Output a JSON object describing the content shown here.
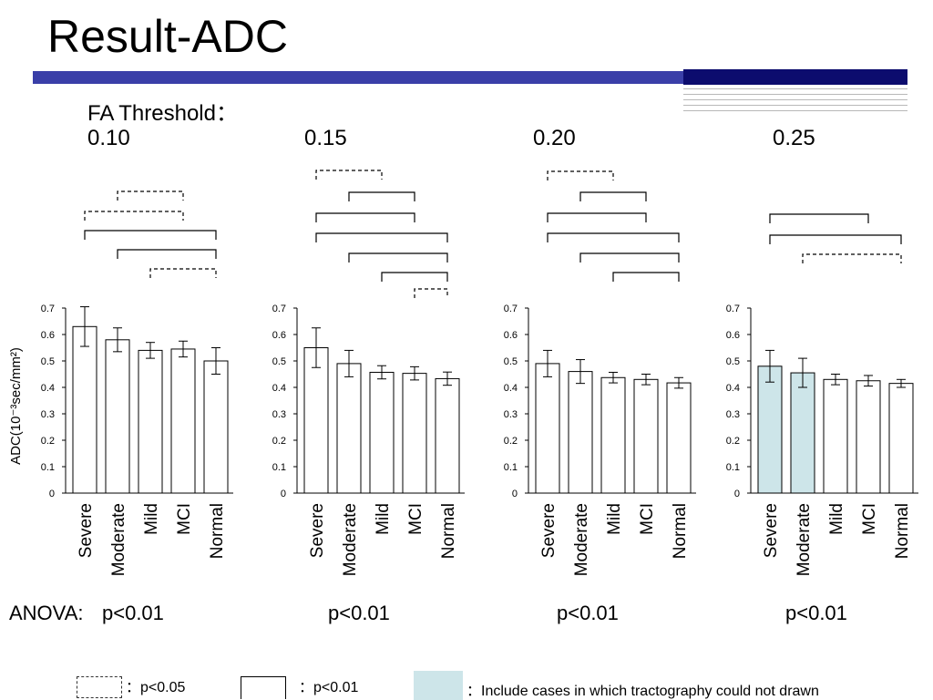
{
  "title": "Result-ADC",
  "fa_label": "FA Threshold：",
  "anova_label": "ANOVA:",
  "legend": {
    "dashed": "：p<0.05",
    "solid": "：p<0.01",
    "shaded": "：Include cases in which tractography could not drawn"
  },
  "colors": {
    "shaded": "#cde5e9",
    "band": "#3a3fa8",
    "band_dark": "#0c0c6e"
  },
  "chart_data": [
    {
      "type": "bar",
      "threshold": "0.10",
      "p_value": "p<0.01",
      "categories": [
        "Severe",
        "Moderate",
        "Mild",
        "MCI",
        "Normal"
      ],
      "values": [
        0.63,
        0.58,
        0.54,
        0.545,
        0.5
      ],
      "errors": [
        0.075,
        0.045,
        0.03,
        0.03,
        0.05
      ],
      "highlighted": [
        false,
        false,
        false,
        false,
        false
      ],
      "ylabel": "ADC(10⁻³sec/mm²)",
      "ylim": [
        0,
        0.7
      ],
      "yticks": [
        "0",
        "0.1",
        "0.2",
        "0.3",
        "0.4",
        "0.5",
        "0.6",
        "0.7"
      ],
      "comparisons": [
        {
          "from": 1,
          "to": 3,
          "sig": "p<0.05"
        },
        {
          "from": 0,
          "to": 3,
          "sig": "p<0.05"
        },
        {
          "from": 0,
          "to": 4,
          "sig": "p<0.01"
        },
        {
          "from": 1,
          "to": 4,
          "sig": "p<0.01"
        },
        {
          "from": 2,
          "to": 4,
          "sig": "p<0.05"
        }
      ]
    },
    {
      "type": "bar",
      "threshold": "0.15",
      "p_value": "p<0.01",
      "categories": [
        "Severe",
        "Moderate",
        "Mild",
        "MCI",
        "Normal"
      ],
      "values": [
        0.55,
        0.49,
        0.457,
        0.453,
        0.433
      ],
      "errors": [
        0.075,
        0.05,
        0.025,
        0.025,
        0.025
      ],
      "highlighted": [
        false,
        false,
        false,
        false,
        false
      ],
      "ylim": [
        0,
        0.7
      ],
      "yticks": [
        "0",
        "0.1",
        "0.2",
        "0.3",
        "0.4",
        "0.5",
        "0.6",
        "0.7"
      ],
      "comparisons": [
        {
          "from": 0,
          "to": 2,
          "sig": "p<0.05"
        },
        {
          "from": 1,
          "to": 3,
          "sig": "p<0.01"
        },
        {
          "from": 0,
          "to": 3,
          "sig": "p<0.01"
        },
        {
          "from": 0,
          "to": 4,
          "sig": "p<0.01"
        },
        {
          "from": 1,
          "to": 4,
          "sig": "p<0.01"
        },
        {
          "from": 2,
          "to": 4,
          "sig": "p<0.01"
        },
        {
          "from": 3,
          "to": 4,
          "sig": "p<0.05"
        }
      ]
    },
    {
      "type": "bar",
      "threshold": "0.20",
      "p_value": "p<0.01",
      "categories": [
        "Severe",
        "Moderate",
        "Mild",
        "MCI",
        "Normal"
      ],
      "values": [
        0.49,
        0.46,
        0.437,
        0.43,
        0.417
      ],
      "errors": [
        0.05,
        0.045,
        0.02,
        0.02,
        0.02
      ],
      "highlighted": [
        false,
        false,
        false,
        false,
        false
      ],
      "ylim": [
        0,
        0.7
      ],
      "yticks": [
        "0",
        "0.1",
        "0.2",
        "0.3",
        "0.4",
        "0.5",
        "0.6",
        "0.7"
      ],
      "comparisons": [
        {
          "from": 0,
          "to": 2,
          "sig": "p<0.05"
        },
        {
          "from": 1,
          "to": 3,
          "sig": "p<0.01"
        },
        {
          "from": 0,
          "to": 3,
          "sig": "p<0.01"
        },
        {
          "from": 0,
          "to": 4,
          "sig": "p<0.01"
        },
        {
          "from": 1,
          "to": 4,
          "sig": "p<0.01"
        },
        {
          "from": 2,
          "to": 4,
          "sig": "p<0.01"
        }
      ]
    },
    {
      "type": "bar",
      "threshold": "0.25",
      "p_value": "p<0.01",
      "categories": [
        "Severe",
        "Moderate",
        "Mild",
        "MCI",
        "Normal"
      ],
      "values": [
        0.48,
        0.455,
        0.43,
        0.425,
        0.415
      ],
      "errors": [
        0.06,
        0.055,
        0.02,
        0.02,
        0.015
      ],
      "highlighted": [
        true,
        true,
        false,
        false,
        false
      ],
      "ylim": [
        0,
        0.7
      ],
      "yticks": [
        "0",
        "0.1",
        "0.2",
        "0.3",
        "0.4",
        "0.5",
        "0.6",
        "0.7"
      ],
      "comparisons": [
        {
          "from": 0,
          "to": 3,
          "sig": "p<0.01"
        },
        {
          "from": 0,
          "to": 4,
          "sig": "p<0.01"
        },
        {
          "from": 1,
          "to": 4,
          "sig": "p<0.05"
        }
      ]
    }
  ]
}
